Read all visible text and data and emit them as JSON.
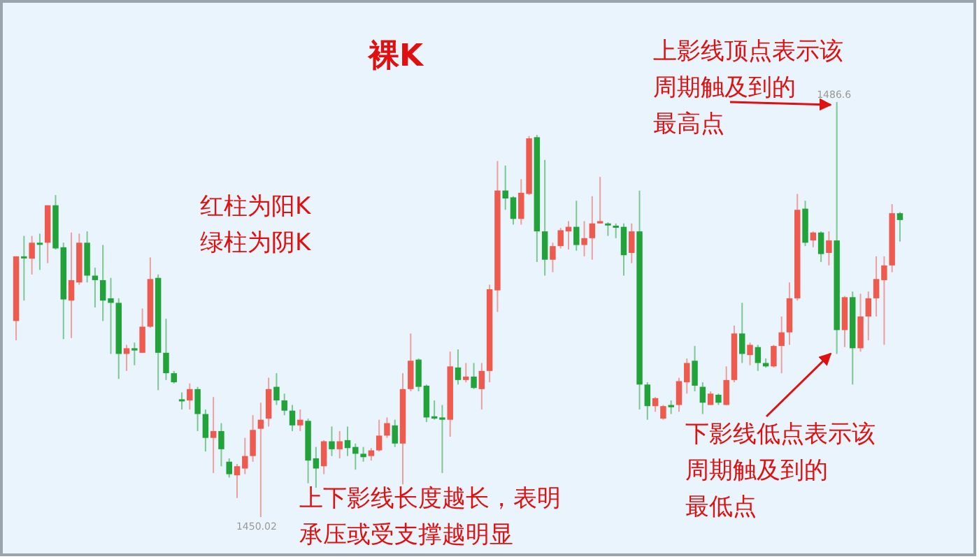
{
  "chart_data": {
    "type": "candlestick",
    "title": "裸K",
    "categories": [
      null,
      null,
      null,
      null,
      null,
      null,
      null,
      null,
      null,
      null,
      null,
      null,
      null,
      null,
      null,
      null,
      null,
      null,
      null,
      null,
      null,
      null,
      null,
      null,
      null,
      null,
      null,
      null,
      null,
      null,
      null,
      null,
      null,
      null,
      null,
      null,
      null,
      null,
      null,
      null,
      null,
      null,
      null,
      null,
      null,
      null,
      null,
      null,
      null,
      null,
      null,
      null,
      null,
      null,
      null,
      null,
      null,
      null,
      null,
      null,
      null,
      null,
      null,
      null,
      null,
      null,
      null,
      null,
      null,
      null,
      null,
      null,
      null,
      null,
      null,
      null,
      null,
      null,
      null,
      null,
      null,
      null,
      null,
      null,
      null,
      null,
      null,
      null,
      null,
      null,
      null,
      null,
      null,
      null,
      null,
      null,
      null,
      null,
      null,
      null,
      null,
      null,
      null,
      null,
      null,
      null,
      null,
      null,
      null,
      null,
      null,
      null,
      null
    ],
    "ohlc": [
      [
        1467.3,
        1473.0,
        1465.6,
        1473.0
      ],
      [
        1473.0,
        1474.8,
        1469.1,
        1472.9
      ],
      [
        1472.8,
        1474.8,
        1471.4,
        1474.2
      ],
      [
        1474.2,
        1475.0,
        1471.8,
        1474.1
      ],
      [
        1474.2,
        1477.5,
        1472.4,
        1477.5
      ],
      [
        1477.5,
        1478.4,
        1473.6,
        1473.7
      ],
      [
        1473.8,
        1474.2,
        1465.7,
        1469.2
      ],
      [
        1469.1,
        1475.1,
        1465.8,
        1470.9
      ],
      [
        1470.7,
        1475.0,
        1470.5,
        1474.2
      ],
      [
        1474.2,
        1475.2,
        1470.7,
        1471.3
      ],
      [
        1471.3,
        1472.0,
        1468.5,
        1470.9
      ],
      [
        1470.9,
        1474.0,
        1467.3,
        1469.1
      ],
      [
        1469.3,
        1471.1,
        1464.4,
        1468.9
      ],
      [
        1468.9,
        1469.3,
        1462.2,
        1464.4
      ],
      [
        1464.4,
        1465.2,
        1462.9,
        1464.9
      ],
      [
        1464.9,
        1465.4,
        1463.4,
        1464.7
      ],
      [
        1464.5,
        1468.4,
        1464.5,
        1466.8
      ],
      [
        1466.8,
        1472.9,
        1466.7,
        1471.0
      ],
      [
        1471.1,
        1471.4,
        1461.2,
        1464.5
      ],
      [
        1464.5,
        1467.5,
        1462.1,
        1462.7
      ],
      [
        1462.7,
        1462.9,
        1461.8,
        1461.9
      ],
      [
        1460.4,
        1461.0,
        1459.5,
        1460.3
      ],
      [
        1460.3,
        1461.8,
        1459.5,
        1461.3
      ],
      [
        1461.3,
        1461.5,
        1457.6,
        1459.1
      ],
      [
        1459.1,
        1459.5,
        1455.8,
        1457.0
      ],
      [
        1457.0,
        1460.6,
        1453.9,
        1457.6
      ],
      [
        1457.6,
        1458.3,
        1454.5,
        1456.0
      ],
      [
        1454.9,
        1455.2,
        1453.5,
        1453.8
      ],
      [
        1453.7,
        1454.7,
        1451.7,
        1454.5
      ],
      [
        1454.3,
        1457.0,
        1453.8,
        1455.4
      ],
      [
        1455.4,
        1459.0,
        1454.9,
        1457.7
      ],
      [
        1457.8,
        1460.1,
        1450.02,
        1458.6
      ],
      [
        1458.7,
        1462.3,
        1458.0,
        1461.3
      ],
      [
        1461.5,
        1462.7,
        1459.9,
        1460.3
      ],
      [
        1460.3,
        1460.9,
        1459.0,
        1459.4
      ],
      [
        1459.4,
        1459.9,
        1457.6,
        1458.1
      ],
      [
        1458.1,
        1459.5,
        1457.6,
        1458.6
      ],
      [
        1458.5,
        1458.7,
        1453.0,
        1455.0
      ],
      [
        1455.2,
        1456.2,
        1452.6,
        1454.3
      ],
      [
        1454.5,
        1456.8,
        1453.8,
        1456.7
      ],
      [
        1456.7,
        1458.0,
        1455.4,
        1456.0
      ],
      [
        1456.0,
        1457.6,
        1455.2,
        1456.7
      ],
      [
        1456.8,
        1458.0,
        1455.4,
        1456.1
      ],
      [
        1456.2,
        1456.5,
        1454.2,
        1455.6
      ],
      [
        1455.6,
        1456.2,
        1454.9,
        1455.3
      ],
      [
        1455.4,
        1456.1,
        1455.0,
        1455.9
      ],
      [
        1455.9,
        1458.6,
        1455.8,
        1457.2
      ],
      [
        1457.2,
        1458.8,
        1457.0,
        1458.3
      ],
      [
        1458.1,
        1458.6,
        1456.2,
        1456.5
      ],
      [
        1456.5,
        1462.7,
        1452.9,
        1461.3
      ],
      [
        1461.3,
        1466.2,
        1461.1,
        1463.8
      ],
      [
        1463.9,
        1464.0,
        1461.1,
        1461.5
      ],
      [
        1461.6,
        1461.7,
        1458.4,
        1458.8
      ],
      [
        1458.9,
        1460.3,
        1458.6,
        1458.7
      ],
      [
        1458.8,
        1459.9,
        1453.9,
        1458.6
      ],
      [
        1458.6,
        1464.6,
        1457.1,
        1463.3
      ],
      [
        1463.2,
        1464.8,
        1461.7,
        1462.1
      ],
      [
        1462.1,
        1463.6,
        1461.9,
        1462.4
      ],
      [
        1462.4,
        1463.6,
        1461.3,
        1461.4
      ],
      [
        1461.3,
        1463.6,
        1459.5,
        1462.9
      ],
      [
        1462.9,
        1470.5,
        1461.9,
        1470.1
      ],
      [
        1470.0,
        1481.4,
        1468.1,
        1478.8
      ],
      [
        1478.8,
        1481.0,
        1477.1,
        1478.1
      ],
      [
        1478.2,
        1478.3,
        1475.8,
        1476.3
      ],
      [
        1476.3,
        1479.8,
        1475.8,
        1478.6
      ],
      [
        1478.5,
        1483.6,
        1478.4,
        1483.4
      ],
      [
        1483.5,
        1483.7,
        1472.5,
        1475.2
      ],
      [
        1475.2,
        1481.5,
        1471.3,
        1472.7
      ],
      [
        1472.7,
        1474.2,
        1471.6,
        1473.9
      ],
      [
        1473.9,
        1475.5,
        1473.7,
        1475.3
      ],
      [
        1475.2,
        1476.1,
        1473.6,
        1475.6
      ],
      [
        1475.6,
        1477.9,
        1473.5,
        1474.0
      ],
      [
        1474.0,
        1476.1,
        1473.0,
        1474.6
      ],
      [
        1474.6,
        1478.3,
        1472.7,
        1475.9
      ],
      [
        1475.9,
        1480.0,
        1475.9,
        1476.1
      ],
      [
        1475.9,
        1476.0,
        1474.8,
        1475.8
      ],
      [
        1475.7,
        1475.9,
        1474.6,
        1475.6
      ],
      [
        1475.6,
        1475.9,
        1471.3,
        1473.1
      ],
      [
        1473.3,
        1475.9,
        1472.4,
        1475.2
      ],
      [
        1475.2,
        1478.8,
        1459.5,
        1461.7
      ],
      [
        1461.7,
        1461.9,
        1458.6,
        1459.8
      ],
      [
        1459.8,
        1460.6,
        1459.3,
        1460.5
      ],
      [
        1458.7,
        1459.9,
        1458.6,
        1459.8
      ],
      [
        1459.9,
        1460.3,
        1459.1,
        1459.7
      ],
      [
        1459.9,
        1462.3,
        1459.3,
        1462.0
      ],
      [
        1461.9,
        1464.0,
        1460.9,
        1463.6
      ],
      [
        1463.8,
        1465.1,
        1461.1,
        1461.6
      ],
      [
        1461.5,
        1461.9,
        1459.1,
        1460.1
      ],
      [
        1459.9,
        1461.1,
        1459.9,
        1460.9
      ],
      [
        1460.8,
        1460.9,
        1459.9,
        1460.1
      ],
      [
        1459.9,
        1463.3,
        1459.9,
        1462.1
      ],
      [
        1462.1,
        1466.9,
        1461.9,
        1466.2
      ],
      [
        1466.2,
        1468.9,
        1463.6,
        1464.4
      ],
      [
        1464.3,
        1465.4,
        1463.4,
        1465.2
      ],
      [
        1465.0,
        1465.2,
        1462.9,
        1463.6
      ],
      [
        1463.6,
        1464.0,
        1463.2,
        1463.3
      ],
      [
        1463.3,
        1465.2,
        1463.2,
        1465.1
      ],
      [
        1465.1,
        1467.7,
        1462.7,
        1466.3
      ],
      [
        1466.3,
        1470.7,
        1465.2,
        1469.3
      ],
      [
        1469.3,
        1478.5,
        1469.1,
        1477.1
      ],
      [
        1477.2,
        1477.9,
        1473.9,
        1474.2
      ],
      [
        1474.4,
        1475.2,
        1473.8,
        1475.1
      ],
      [
        1475.1,
        1475.2,
        1472.5,
        1473.2
      ],
      [
        1473.3,
        1475.2,
        1472.2,
        1474.4
      ],
      [
        1474.4,
        1486.6,
        1464.4,
        1466.5
      ],
      [
        1466.5,
        1469.5,
        1465.0,
        1469.4
      ],
      [
        1469.4,
        1469.9,
        1461.7,
        1464.9
      ],
      [
        1464.9,
        1469.7,
        1464.6,
        1467.7
      ],
      [
        1467.7,
        1469.9,
        1465.6,
        1469.3
      ],
      [
        1469.3,
        1473.0,
        1467.7,
        1471.0
      ],
      [
        1470.9,
        1473.0,
        1465.2,
        1472.2
      ],
      [
        1472.2,
        1477.6,
        1471.6,
        1476.8
      ],
      [
        1476.8,
        1476.9,
        1474.3,
        1476.2
      ]
    ],
    "annotations": [
      "红柱为阳K绿柱为阴K",
      "上影线顶点表示该周期触及到的最高点",
      "下影线低点表示该周期触及到的最低点",
      "上下影线长度越长，表明承压或受支撑越明显",
      {
        "text": "1486.6",
        "y": 1486.6
      },
      {
        "text": "1450.02",
        "y": 1450.02
      }
    ]
  }
}
